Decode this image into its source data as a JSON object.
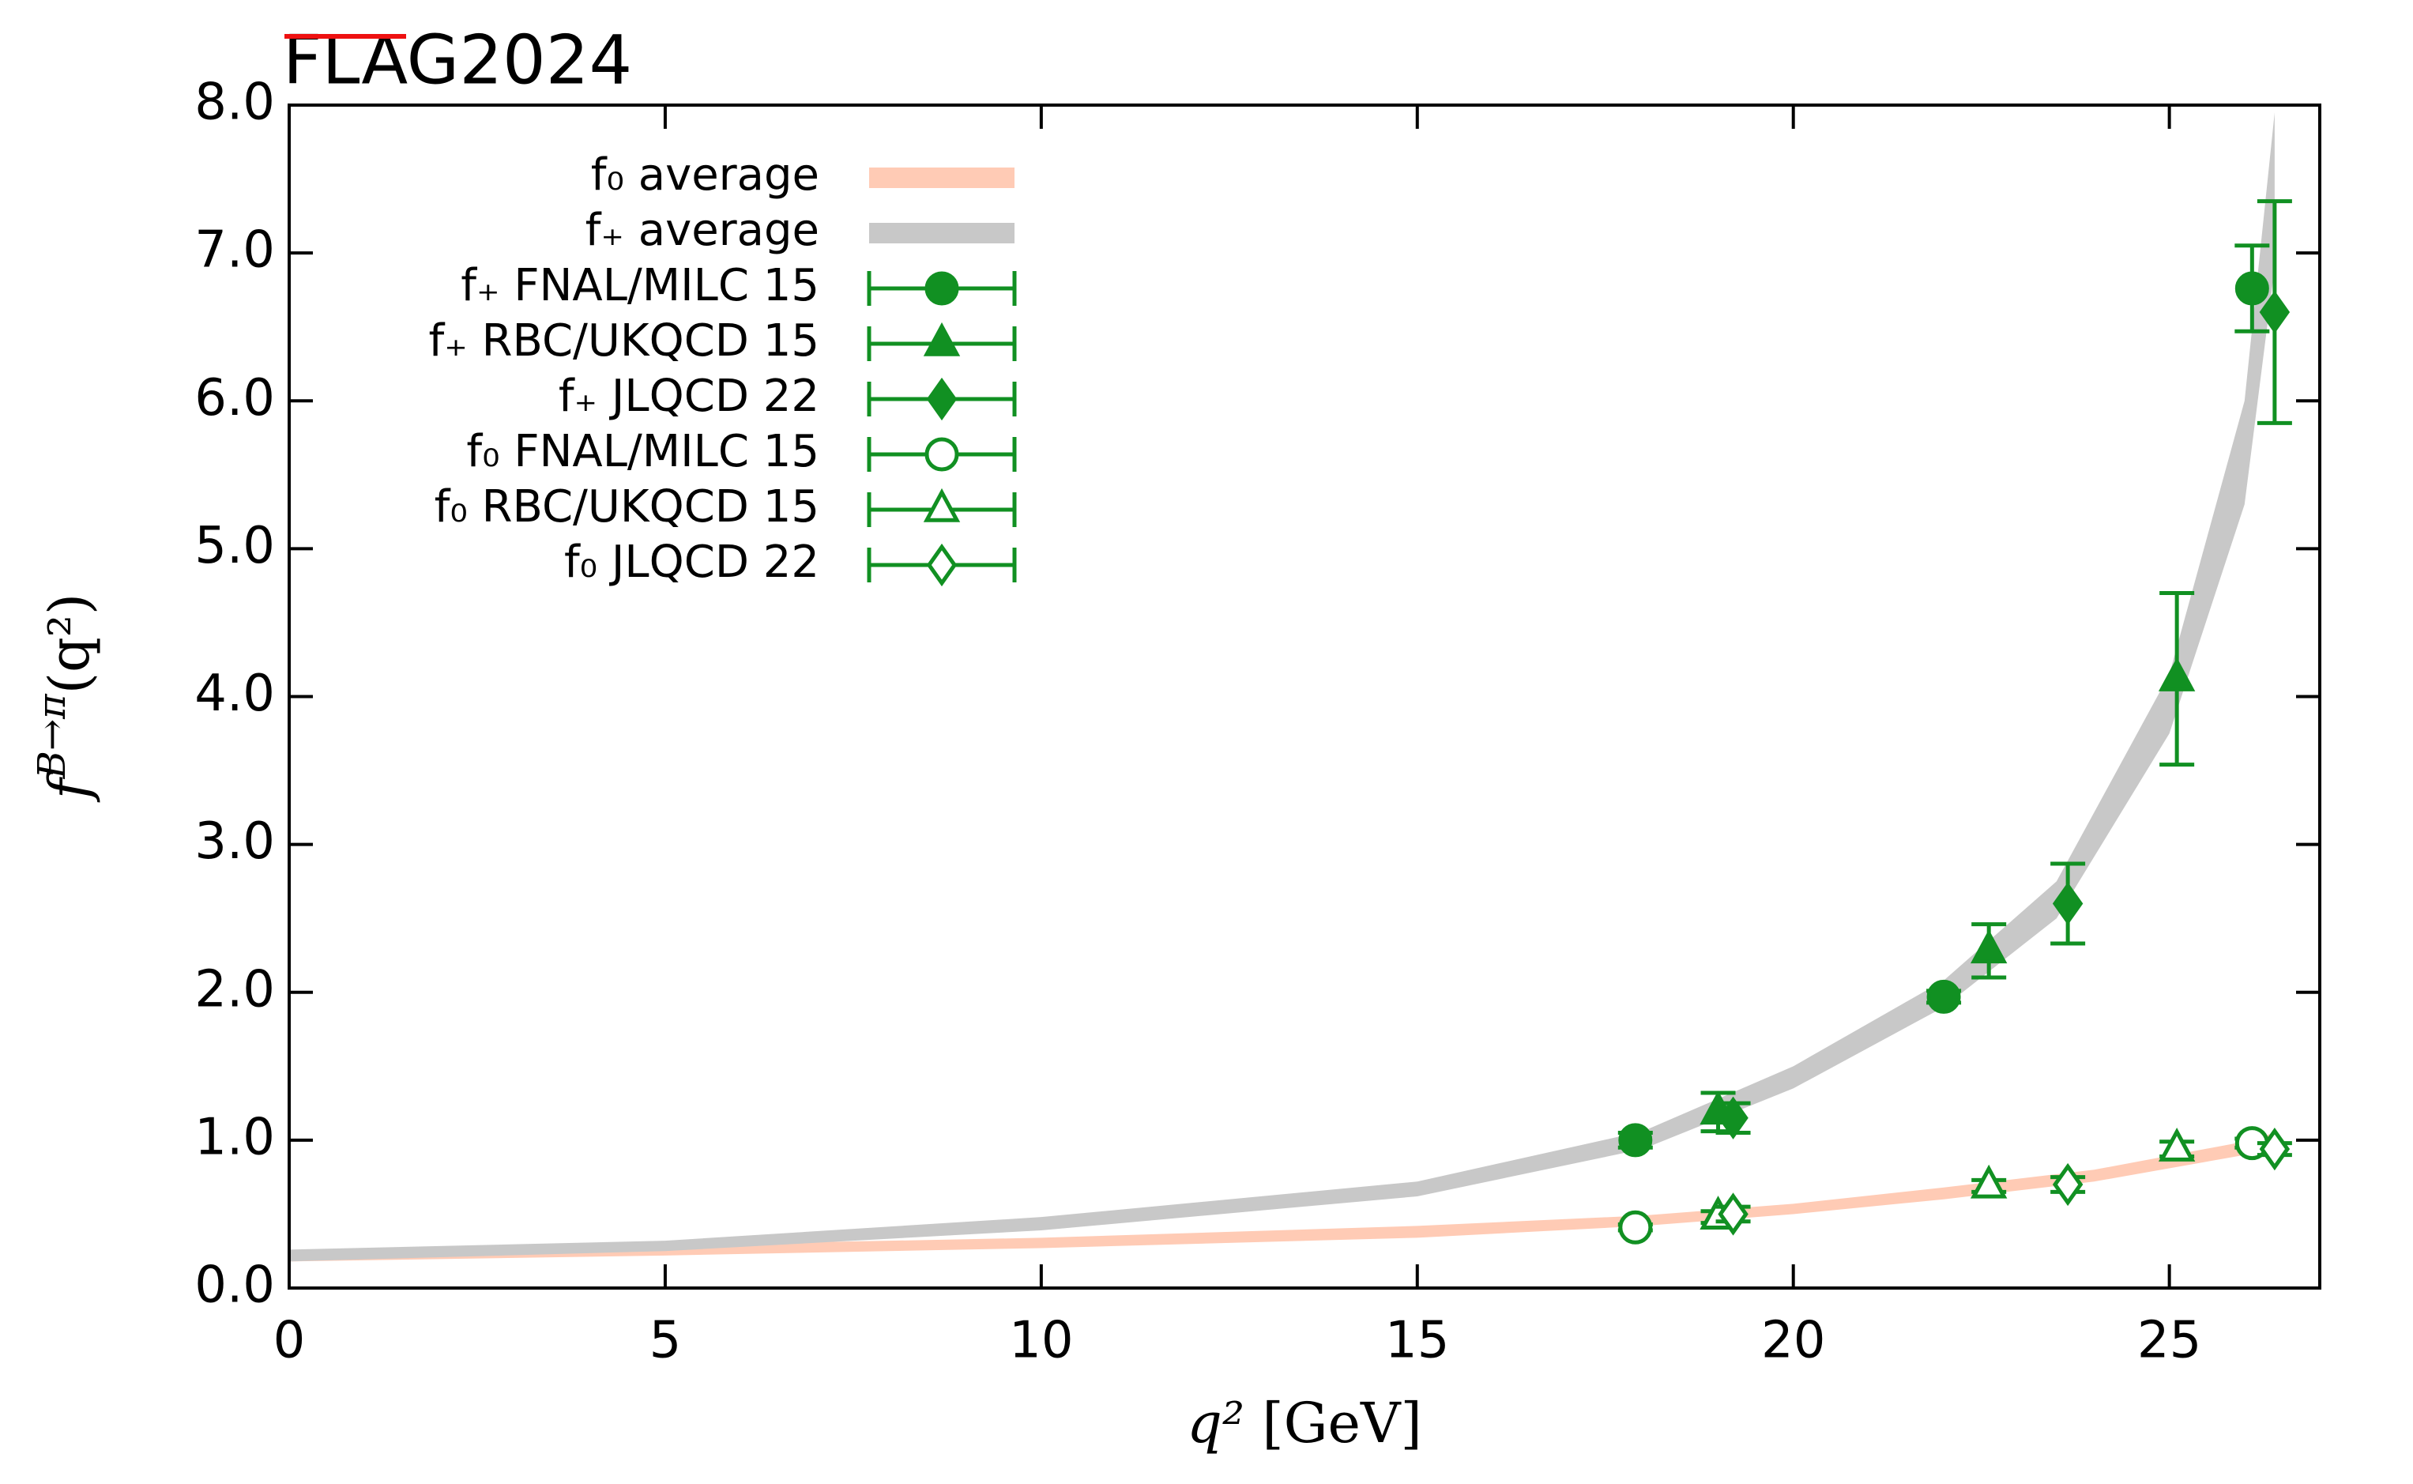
{
  "chart_data": {
    "type": "scatter",
    "title": "FLAG2024",
    "title_color": "#ee1111",
    "xlabel": {
      "symbol": "q²",
      "unit": "[GeV]"
    },
    "ylabel": {
      "symbol": "f",
      "superscript": "B→π",
      "argument": "(q²)"
    },
    "xlim": [
      0,
      27
    ],
    "ylim": [
      0,
      8
    ],
    "xticks": [
      0,
      5,
      10,
      15,
      20,
      25
    ],
    "yticks": [
      {
        "value": 0,
        "label": "0.0"
      },
      {
        "value": 1,
        "label": "1.0"
      },
      {
        "value": 2,
        "label": "2.0"
      },
      {
        "value": 3,
        "label": "3.0"
      },
      {
        "value": 4,
        "label": "4.0"
      },
      {
        "value": 5,
        "label": "5.0"
      },
      {
        "value": 6,
        "label": "6.0"
      },
      {
        "value": 7,
        "label": "7.0"
      },
      {
        "value": 8,
        "label": "8.0"
      }
    ],
    "legend": "upper left",
    "bands": [
      {
        "name": "f₀ average",
        "color": "#ffcbb5",
        "x": [
          0,
          5,
          10,
          15,
          18,
          20,
          22,
          24,
          26,
          26.4
        ],
        "lower": [
          0.18,
          0.22,
          0.27,
          0.34,
          0.42,
          0.5,
          0.6,
          0.72,
          0.9,
          0.95
        ],
        "upper": [
          0.25,
          0.29,
          0.34,
          0.42,
          0.49,
          0.57,
          0.68,
          0.8,
          0.99,
          1.05
        ]
      },
      {
        "name": "f₊ average",
        "color": "#c8c8c8",
        "x": [
          0,
          5,
          10,
          15,
          18,
          20,
          22,
          23.5,
          25,
          26,
          26.4
        ],
        "lower": [
          0.18,
          0.25,
          0.39,
          0.62,
          0.94,
          1.35,
          1.9,
          2.5,
          3.75,
          5.3,
          6.9
        ],
        "upper": [
          0.26,
          0.32,
          0.48,
          0.72,
          1.06,
          1.5,
          2.08,
          2.75,
          4.15,
          6.0,
          7.95
        ]
      }
    ],
    "series": [
      {
        "name": "f₊ FNAL/MILC 15",
        "color": "#119022",
        "marker": "circle",
        "filled": true,
        "x": [
          17.9,
          22.0,
          26.1
        ],
        "values": [
          1.0,
          1.97,
          6.76
        ],
        "errors": [
          0.05,
          0.04,
          0.29
        ]
      },
      {
        "name": "f₊ RBC/UKQCD 15",
        "color": "#119022",
        "marker": "triangle",
        "filled": true,
        "x": [
          19.0,
          22.6,
          25.1
        ],
        "values": [
          1.19,
          2.28,
          4.12
        ],
        "errors": [
          0.13,
          0.18,
          0.58
        ]
      },
      {
        "name": "f₊ JLQCD 22",
        "color": "#119022",
        "marker": "diamond",
        "filled": true,
        "x": [
          19.2,
          23.65,
          26.4
        ],
        "values": [
          1.15,
          2.6,
          6.6
        ],
        "errors": [
          0.1,
          0.27,
          0.75
        ]
      },
      {
        "name": "f₀ FNAL/MILC 15",
        "color": "#119022",
        "marker": "circle",
        "filled": false,
        "x": [
          17.9,
          26.1
        ],
        "values": [
          0.41,
          0.98
        ],
        "errors": [
          0.02,
          0.03
        ]
      },
      {
        "name": "f₀ RBC/UKQCD 15",
        "color": "#119022",
        "marker": "triangle",
        "filled": false,
        "x": [
          19.0,
          22.6,
          25.1
        ],
        "values": [
          0.48,
          0.69,
          0.94
        ],
        "errors": [
          0.04,
          0.04,
          0.05
        ]
      },
      {
        "name": "f₀ JLQCD 22",
        "color": "#119022",
        "marker": "diamond",
        "filled": false,
        "x": [
          19.2,
          23.65,
          26.4
        ],
        "values": [
          0.5,
          0.7,
          0.94
        ],
        "errors": [
          0.05,
          0.05,
          0.04
        ]
      }
    ]
  }
}
